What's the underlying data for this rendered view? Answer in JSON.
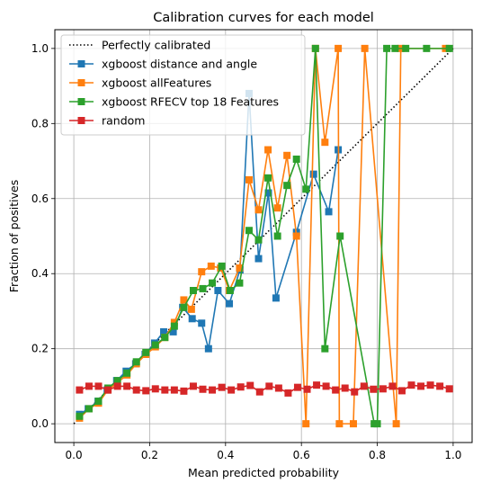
{
  "chart_data": {
    "type": "line",
    "title": "Calibration curves for each model",
    "xlabel": "Mean predicted probability",
    "ylabel": "Fraction of positives",
    "xlim": [
      -0.05,
      1.05
    ],
    "ylim": [
      -0.05,
      1.05
    ],
    "xticks": [
      "0.0",
      "0.2",
      "0.4",
      "0.6",
      "0.8",
      "1.0"
    ],
    "yticks": [
      "0.0",
      "0.2",
      "0.4",
      "0.6",
      "0.8",
      "1.0"
    ],
    "grid": true,
    "legend_position": "top-left",
    "reference_line": {
      "name": "Perfectly calibrated",
      "x": [
        0,
        1
      ],
      "y": [
        0,
        1
      ],
      "color": "#000000",
      "style": "dotted"
    },
    "series": [
      {
        "name": "xgboost distance and angle",
        "color": "#1f77b4",
        "marker": "square",
        "x": [
          0.015,
          0.038,
          0.064,
          0.088,
          0.113,
          0.138,
          0.163,
          0.188,
          0.213,
          0.237,
          0.262,
          0.287,
          0.312,
          0.337,
          0.355,
          0.38,
          0.41,
          0.438,
          0.462,
          0.487,
          0.513,
          0.533,
          0.587,
          0.632,
          0.672,
          0.697
        ],
        "y": [
          0.025,
          0.04,
          0.06,
          0.09,
          0.115,
          0.14,
          0.16,
          0.185,
          0.215,
          0.245,
          0.245,
          0.31,
          0.28,
          0.268,
          0.2,
          0.355,
          0.32,
          0.41,
          0.88,
          0.44,
          0.615,
          0.335,
          0.51,
          0.665,
          0.565,
          0.73
        ]
      },
      {
        "name": "xgboost allFeatures",
        "color": "#ff7f0e",
        "marker": "square",
        "x": [
          0.015,
          0.04,
          0.065,
          0.09,
          0.115,
          0.14,
          0.165,
          0.19,
          0.215,
          0.24,
          0.265,
          0.29,
          0.31,
          0.337,
          0.362,
          0.387,
          0.41,
          0.437,
          0.462,
          0.487,
          0.512,
          0.537,
          0.562,
          0.587,
          0.612,
          0.637,
          0.662,
          0.697,
          0.7,
          0.737,
          0.767,
          0.85,
          0.862,
          0.98
        ],
        "y": [
          0.015,
          0.04,
          0.055,
          0.09,
          0.11,
          0.13,
          0.16,
          0.185,
          0.205,
          0.23,
          0.27,
          0.33,
          0.305,
          0.405,
          0.42,
          0.415,
          0.355,
          0.415,
          0.65,
          0.57,
          0.73,
          0.575,
          0.715,
          0.5,
          0.0,
          1.0,
          0.75,
          1.0,
          0.0,
          0.0,
          1.0,
          0.0,
          1.0,
          1.0
        ]
      },
      {
        "name": "xgboost RFECV top 18 Features",
        "color": "#2ca02c",
        "marker": "square",
        "x": [
          0.015,
          0.04,
          0.065,
          0.09,
          0.115,
          0.14,
          0.165,
          0.19,
          0.215,
          0.24,
          0.265,
          0.29,
          0.315,
          0.34,
          0.365,
          0.39,
          0.412,
          0.437,
          0.462,
          0.487,
          0.512,
          0.537,
          0.562,
          0.587,
          0.612,
          0.637,
          0.662,
          0.702,
          0.792,
          0.8,
          0.825,
          0.847,
          0.875,
          0.93,
          0.99
        ],
        "y": [
          0.02,
          0.04,
          0.06,
          0.095,
          0.115,
          0.135,
          0.165,
          0.19,
          0.21,
          0.23,
          0.26,
          0.31,
          0.355,
          0.36,
          0.375,
          0.42,
          0.355,
          0.375,
          0.515,
          0.49,
          0.655,
          0.5,
          0.635,
          0.705,
          0.625,
          1.0,
          0.2,
          0.5,
          0.0,
          0.0,
          1.0,
          1.0,
          1.0,
          1.0,
          1.0
        ]
      },
      {
        "name": "random",
        "color": "#d62728",
        "marker": "square",
        "x": [
          0.015,
          0.04,
          0.065,
          0.09,
          0.115,
          0.14,
          0.165,
          0.19,
          0.215,
          0.24,
          0.265,
          0.29,
          0.315,
          0.34,
          0.365,
          0.39,
          0.415,
          0.44,
          0.465,
          0.49,
          0.515,
          0.54,
          0.565,
          0.59,
          0.615,
          0.64,
          0.665,
          0.69,
          0.715,
          0.74,
          0.765,
          0.79,
          0.815,
          0.84,
          0.865,
          0.89,
          0.915,
          0.94,
          0.965,
          0.99
        ],
        "y": [
          0.09,
          0.1,
          0.1,
          0.09,
          0.1,
          0.1,
          0.09,
          0.088,
          0.093,
          0.09,
          0.09,
          0.087,
          0.1,
          0.092,
          0.09,
          0.097,
          0.09,
          0.098,
          0.102,
          0.085,
          0.1,
          0.095,
          0.082,
          0.097,
          0.092,
          0.103,
          0.1,
          0.09,
          0.095,
          0.085,
          0.1,
          0.092,
          0.093,
          0.1,
          0.088,
          0.103,
          0.1,
          0.103,
          0.1,
          0.093
        ]
      }
    ]
  }
}
